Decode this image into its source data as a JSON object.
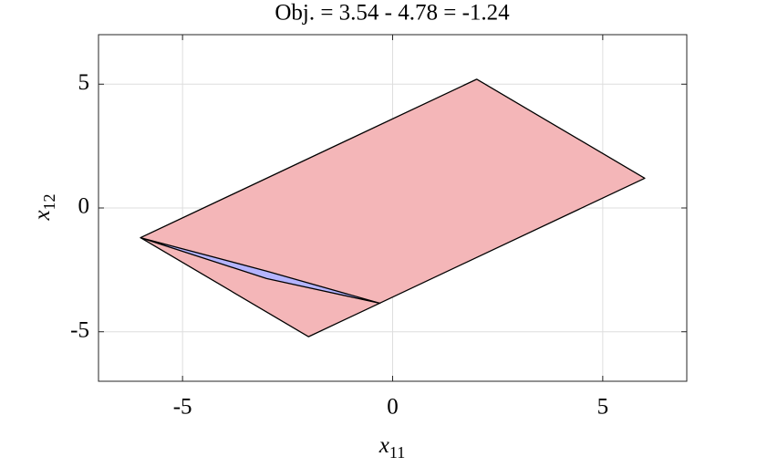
{
  "chart_data": {
    "type": "polygon",
    "title": "Obj. = 3.54 - 4.78 = -1.24",
    "xlabel": {
      "text": "x",
      "subscript": "11"
    },
    "ylabel": {
      "text": "x",
      "subscript": "12"
    },
    "xlim": [
      -7,
      7
    ],
    "ylim": [
      -7,
      7
    ],
    "xticks": [
      -5,
      0,
      5
    ],
    "yticks": [
      -5,
      0,
      5
    ],
    "grid": true,
    "series": [
      {
        "color": "#f4b6b8",
        "edgecolor": "#000000",
        "x": [
          -6,
          2,
          6,
          -2
        ],
        "y": [
          -1.2,
          5.2,
          1.2,
          -5.2
        ]
      },
      {
        "color": "#b4b4ff",
        "edgecolor": "#000000",
        "x": [
          -6,
          -3,
          -0.3,
          -3
        ],
        "y": [
          -1.2,
          -2.55,
          -3.85,
          -2.85
        ]
      }
    ]
  }
}
